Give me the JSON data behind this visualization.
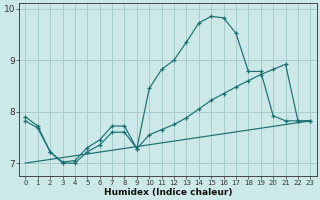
{
  "xlabel": "Humidex (Indice chaleur)",
  "bg_color": "#cce8e8",
  "line_color": "#1a7070",
  "grid_color": "#aacccc",
  "xlim": [
    -0.5,
    23.5
  ],
  "ylim": [
    6.75,
    10.1
  ],
  "xticks": [
    0,
    1,
    2,
    3,
    4,
    5,
    6,
    7,
    8,
    9,
    10,
    11,
    12,
    13,
    14,
    15,
    16,
    17,
    18,
    19,
    20,
    21,
    22,
    23
  ],
  "yticks": [
    7,
    8,
    9,
    10
  ],
  "line1_x": [
    0,
    1,
    2,
    3,
    4,
    5,
    6,
    7,
    8,
    9,
    10,
    11,
    12,
    13,
    14,
    15,
    16,
    17,
    18,
    19,
    20,
    21,
    22,
    23
  ],
  "line1_y": [
    7.9,
    7.72,
    7.22,
    7.02,
    7.05,
    7.3,
    7.45,
    7.72,
    7.72,
    7.28,
    8.45,
    8.82,
    9.0,
    9.35,
    9.72,
    9.85,
    9.82,
    9.52,
    8.78,
    8.78,
    7.92,
    7.82,
    7.82,
    7.82
  ],
  "line2_x": [
    0,
    1,
    2,
    3,
    4,
    5,
    6,
    7,
    8,
    9,
    10,
    11,
    12,
    13,
    14,
    15,
    16,
    17,
    18,
    19,
    20,
    21,
    22,
    23
  ],
  "line2_y": [
    7.82,
    7.68,
    7.22,
    7.0,
    7.0,
    7.22,
    7.35,
    7.6,
    7.6,
    7.28,
    7.55,
    7.65,
    7.75,
    7.88,
    8.05,
    8.22,
    8.35,
    8.48,
    8.6,
    8.72,
    8.82,
    8.92,
    7.82,
    7.82
  ],
  "line3_x": [
    0,
    23
  ],
  "line3_y": [
    7.0,
    7.82
  ]
}
